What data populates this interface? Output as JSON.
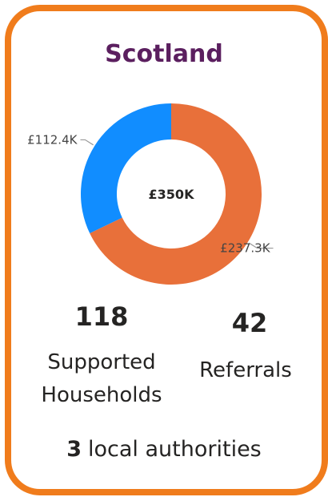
{
  "title": "Scotland",
  "chart_data": {
    "type": "pie",
    "hole": true,
    "center_label": "£350K",
    "values": [
      237.3,
      112.4
    ],
    "value_labels": [
      "£237.3K",
      "£112.4K"
    ],
    "colors": [
      "#e8703a",
      "#118dff"
    ]
  },
  "kpis": [
    {
      "value": 118,
      "label": "Supported Households"
    },
    {
      "value": 42,
      "label": "Referrals"
    },
    {
      "value": 3,
      "label": "local authorities"
    }
  ]
}
